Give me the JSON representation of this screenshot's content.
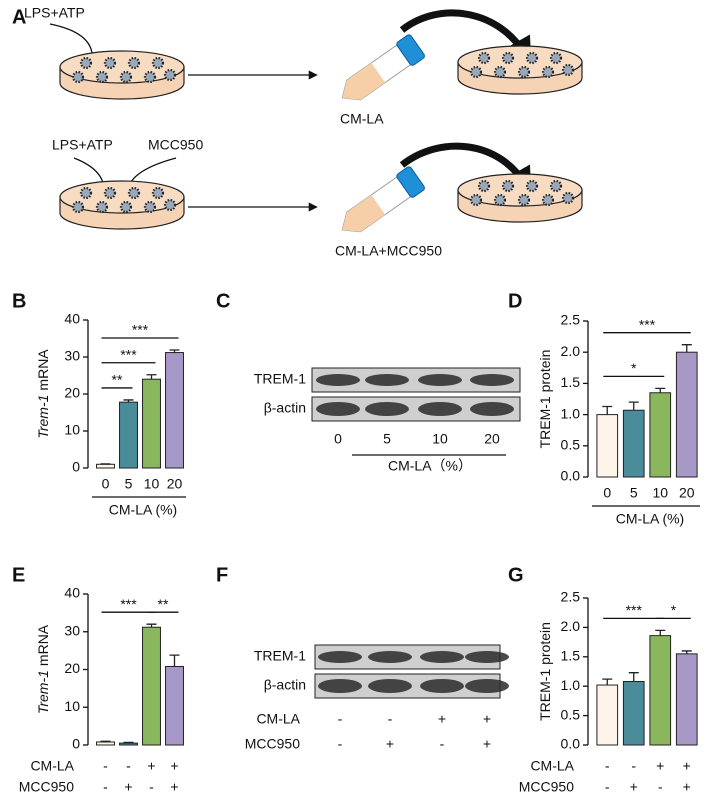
{
  "panel_labels": [
    "A",
    "B",
    "C",
    "D",
    "E",
    "F",
    "G"
  ],
  "diagram": {
    "treat_1": "LPS+ATP",
    "treat_2a": "LPS+ATP",
    "treat_2b": "MCC950",
    "tube_1": "CM-LA",
    "tube_2": "CM-LA+MCC950"
  },
  "blot_c": {
    "rows": [
      "TREM-1",
      "β-actin"
    ],
    "lanes": [
      "0",
      "5",
      "10",
      "20"
    ],
    "axis_label": "CM-LA（%）"
  },
  "blot_f": {
    "rows": [
      "TREM-1",
      "β-actin"
    ],
    "conditions": [
      {
        "label": "CM-LA",
        "signs": [
          "-",
          "-",
          "+",
          "+"
        ]
      },
      {
        "label": "MCC950",
        "signs": [
          "-",
          "+",
          "-",
          "+"
        ]
      }
    ]
  },
  "chart_data": [
    {
      "type": "bar",
      "y_label": [
        "Trem-1",
        "mRNA"
      ],
      "x_label": "CM-LA (%)",
      "categories": [
        "0",
        "5",
        "10",
        "20"
      ],
      "values": [
        1,
        17.8,
        24,
        31.2
      ],
      "errors": [
        0.1,
        0.6,
        1.2,
        0.7
      ],
      "colors": [
        "#fdf3e8",
        "#4a8c9a",
        "#8ab75d",
        "#a898c8"
      ],
      "ylim": [
        0,
        40
      ],
      "yticks": [
        0,
        10,
        20,
        30,
        40
      ],
      "significance": [
        {
          "from": 0,
          "to": 1,
          "label": "**"
        },
        {
          "from": 0,
          "to": 2,
          "label": "***"
        },
        {
          "from": 0,
          "to": 3,
          "label": "***"
        }
      ]
    },
    {
      "type": "bar",
      "y_label": [
        "TREM-1 protein"
      ],
      "x_label": "CM-LA (%)",
      "categories": [
        "0",
        "5",
        "10",
        "20"
      ],
      "values": [
        1.0,
        1.07,
        1.35,
        2.0
      ],
      "errors": [
        0.13,
        0.13,
        0.07,
        0.12
      ],
      "colors": [
        "#fdf3e8",
        "#4a8c9a",
        "#8ab75d",
        "#a898c8"
      ],
      "ylim": [
        0,
        2.5
      ],
      "yticks": [
        {
          "value": 0,
          "label": "0.0"
        },
        0.5,
        {
          "value": 1,
          "label": "1.0"
        },
        1.5,
        {
          "value": 2,
          "label": "2.0"
        },
        2.5
      ],
      "significance": [
        {
          "from": 0,
          "to": 2,
          "label": "*"
        },
        {
          "from": 0,
          "to": 3,
          "label": "***"
        }
      ]
    },
    {
      "type": "bar",
      "y_label": [
        "Trem-1",
        "mRNA"
      ],
      "conditions": [
        {
          "label": "CM-LA",
          "signs": [
            "-",
            "-",
            "+",
            "+"
          ]
        },
        {
          "label": "MCC950",
          "signs": [
            "-",
            "+",
            "-",
            "+"
          ]
        }
      ],
      "values": [
        0.8,
        0.5,
        31.2,
        20.8
      ],
      "errors": [
        0.2,
        0.2,
        0.8,
        3
      ],
      "colors": [
        "#fdf3e8",
        "#4a8c9a",
        "#8ab75d",
        "#a898c8"
      ],
      "ylim": [
        0,
        40
      ],
      "yticks": [
        0,
        10,
        20,
        30,
        40
      ],
      "significance": [
        {
          "from": 0,
          "to": 2,
          "label": "***"
        },
        {
          "from": 2,
          "to": 3,
          "label": "**"
        }
      ]
    },
    {
      "type": "bar",
      "y_label": [
        "TREM-1 protein"
      ],
      "conditions": [
        {
          "label": "CM-LA",
          "signs": [
            "-",
            "-",
            "+",
            "+"
          ]
        },
        {
          "label": "MCC950",
          "signs": [
            "-",
            "+",
            "-",
            "+"
          ]
        }
      ],
      "values": [
        1.02,
        1.08,
        1.86,
        1.55
      ],
      "errors": [
        0.1,
        0.15,
        0.09,
        0.05
      ],
      "colors": [
        "#fdf3e8",
        "#4a8c9a",
        "#8ab75d",
        "#a898c8"
      ],
      "ylim": [
        0,
        2.5
      ],
      "yticks": [
        {
          "value": 0,
          "label": "0.0"
        },
        0.5,
        {
          "value": 1,
          "label": "1.0"
        },
        1.5,
        {
          "value": 2,
          "label": "2.0"
        },
        2.5
      ],
      "significance": [
        {
          "from": 0,
          "to": 2,
          "label": "***"
        },
        {
          "from": 2,
          "to": 3,
          "label": "*"
        }
      ]
    }
  ]
}
